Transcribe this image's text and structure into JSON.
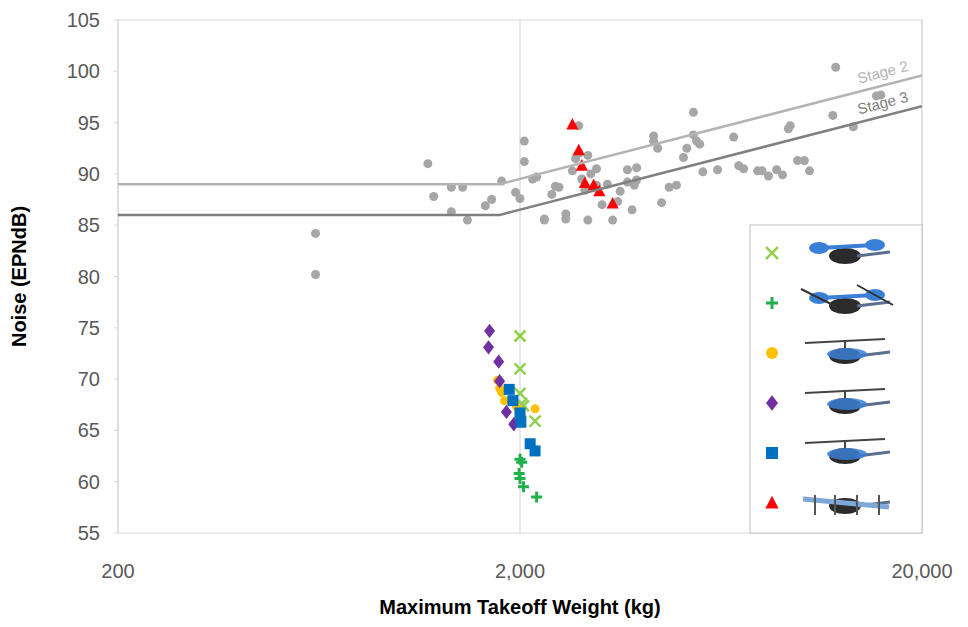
{
  "chart_data": {
    "type": "scatter",
    "xlabel": "Maximum Takeoff Weight (kg)",
    "ylabel": "Noise (EPNdB)",
    "log": "x",
    "grid": true,
    "legend": "bottom-right",
    "xlim": [
      200,
      20000
    ],
    "ylim": [
      55,
      105
    ],
    "xticks": [
      200,
      {
        "value": 2000,
        "label": "2,000"
      },
      {
        "value": 20000,
        "label": "20,000"
      }
    ],
    "yticks": [
      55,
      60,
      65,
      70,
      75,
      80,
      85,
      90,
      95,
      100,
      105
    ],
    "series": [
      {
        "color": "#a6a6a6",
        "marker": "circle",
        "x": [
          620,
          620,
          1180,
          1220,
          1350,
          1440,
          1350,
          1480,
          1640,
          1700,
          1800,
          1950,
          2000,
          2050,
          2050,
          2150,
          2200,
          2300,
          2300,
          2400,
          2450,
          2500,
          2600,
          2600,
          2700,
          2750,
          2800,
          2800,
          2850,
          2900,
          2950,
          2950,
          3000,
          3100,
          3100,
          3200,
          3300,
          3400,
          3500,
          3550,
          3700,
          3700,
          3800,
          3850,
          3900,
          3900,
          4300,
          4300,
          4400,
          4500,
          4700,
          4900,
          5100,
          5200,
          5400,
          5400,
          5500,
          5600,
          5700,
          6200,
          6800,
          7000,
          7200,
          7800,
          8000,
          8300,
          8700,
          9000,
          9300,
          9400,
          9800,
          10200,
          10500,
          12000,
          12200,
          13500,
          15400,
          15800
        ],
        "values": [
          84.2,
          80.2,
          91,
          87.8,
          88.7,
          88.7,
          86.3,
          85.5,
          86.9,
          87.5,
          89.3,
          88.2,
          87.6,
          91.2,
          93.2,
          89.5,
          89.7,
          85.6,
          85.5,
          88,
          88.8,
          88.7,
          85.6,
          86.1,
          90.3,
          91.5,
          94.7,
          92,
          89.5,
          88.4,
          91.8,
          85.5,
          90,
          90.5,
          88.9,
          87,
          89,
          85.5,
          87.3,
          88.3,
          89.2,
          90.4,
          86.5,
          88.9,
          89.4,
          90.6,
          93.2,
          93.7,
          92.5,
          87.2,
          88.7,
          88.9,
          91.6,
          92.5,
          96,
          93.8,
          93.2,
          92.9,
          90.2,
          90.4,
          93.6,
          90.8,
          90.5,
          90.3,
          90.3,
          89.8,
          90.4,
          89.9,
          94.4,
          94.7,
          91.3,
          91.3,
          90.3,
          95.7,
          100.4,
          94.6,
          97.6,
          97.7
        ]
      },
      {
        "color": "#92d050",
        "marker": "x",
        "x": [
          2000,
          2000,
          2000,
          2020,
          2040,
          2010,
          2180
        ],
        "values": [
          74.2,
          71,
          68.6,
          67.6,
          67.4,
          66.8,
          65.9
        ]
      },
      {
        "color": "#22b04c",
        "marker": "plus",
        "x": [
          2000,
          2020,
          1990,
          2000,
          2040,
          2200
        ],
        "values": [
          62.2,
          61.9,
          60.8,
          60.3,
          59.5,
          58.5
        ]
      },
      {
        "color": "#ffc000",
        "marker": "circle",
        "x": [
          1760,
          1780,
          1800,
          1830,
          1960,
          2180
        ],
        "values": [
          69.9,
          69.1,
          68.7,
          67.9,
          67.3,
          67.1
        ]
      },
      {
        "color": "#7030a0",
        "marker": "diamond",
        "x": [
          1680,
          1670,
          1770,
          1780,
          1850,
          1930
        ],
        "values": [
          74.7,
          73.1,
          71.7,
          69.8,
          66.8,
          65.6
        ]
      },
      {
        "color": "#0070c0",
        "marker": "square",
        "x": [
          1880,
          1920,
          2000,
          2010,
          2120,
          2180
        ],
        "values": [
          69,
          67.9,
          66.7,
          65.8,
          63.7,
          63
        ]
      },
      {
        "color": "#ff0000",
        "marker": "triangle",
        "x": [
          2700,
          2800,
          2850,
          2900,
          3050,
          3150,
          3400
        ],
        "values": [
          94.8,
          92.3,
          90.8,
          89.1,
          88.9,
          88.3,
          87.1
        ]
      },
      {
        "name": "Stage 2",
        "type": "line",
        "color": "#b4b4b4",
        "line_style": "solid",
        "x": [
          200,
          1780,
          20000
        ],
        "values": [
          89,
          89,
          99.6
        ]
      },
      {
        "name": "Stage 3",
        "type": "line",
        "color": "#808080",
        "line_style": "solid",
        "x": [
          200,
          1780,
          20000
        ],
        "values": [
          86,
          86,
          96.6
        ]
      }
    ]
  }
}
